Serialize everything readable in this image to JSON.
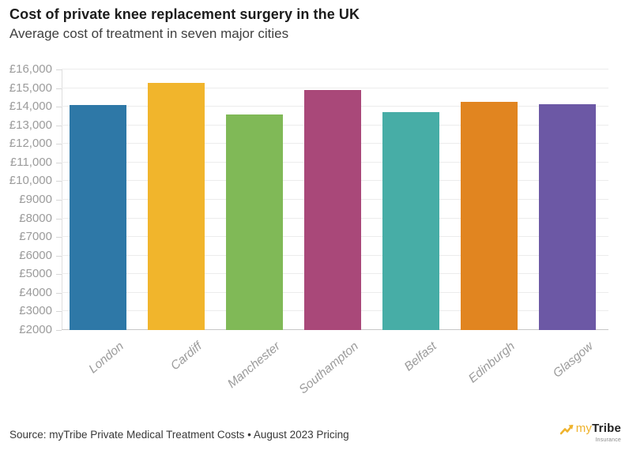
{
  "chart_data": {
    "type": "bar",
    "title": "Cost of private knee replacement surgery in the UK",
    "subtitle": "Average cost of treatment in seven major cities",
    "categories": [
      "London",
      "Cardiff",
      "Manchester",
      "Southampton",
      "Belfast",
      "Edinburgh",
      "Glasgow"
    ],
    "values": [
      14100,
      15300,
      13600,
      14900,
      13700,
      14250,
      14150
    ],
    "bar_colors": [
      "#2e78a7",
      "#f1b52c",
      "#80b957",
      "#a94879",
      "#47ada6",
      "#e18520",
      "#6c58a5"
    ],
    "currency": "£",
    "xlabel": "",
    "ylabel": "",
    "ylim": [
      2000,
      16000
    ],
    "yticks": [
      {
        "value": 16000,
        "label": "£16,000"
      },
      {
        "value": 15000,
        "label": "£15,000"
      },
      {
        "value": 14000,
        "label": "£14,000"
      },
      {
        "value": 13000,
        "label": "£13,000"
      },
      {
        "value": 12000,
        "label": "£12,000"
      },
      {
        "value": 11000,
        "label": "£11,000"
      },
      {
        "value": 10000,
        "label": "£10,000"
      },
      {
        "value": 9000,
        "label": "£9000"
      },
      {
        "value": 8000,
        "label": "£8000"
      },
      {
        "value": 7000,
        "label": "£7000"
      },
      {
        "value": 6000,
        "label": "£6000"
      },
      {
        "value": 5000,
        "label": "£5000"
      },
      {
        "value": 4000,
        "label": "£4000"
      },
      {
        "value": 3000,
        "label": "£3000"
      },
      {
        "value": 2000,
        "label": "£2000"
      }
    ],
    "grid": true,
    "legend_position": "none",
    "grid_color": "#ececec",
    "axis_color": "#dedede",
    "tick_label_color": "#9b9b9b"
  },
  "footer": {
    "source": "Source: myTribe Private Medical Treatment Costs • August 2023 Pricing"
  },
  "logo": {
    "arrow_icon": "gold-zigzag-arrow",
    "my": "my",
    "tribe": "Tribe",
    "insurance": "Insurance",
    "gold_color": "#efb32d",
    "dark_color": "#222222"
  }
}
